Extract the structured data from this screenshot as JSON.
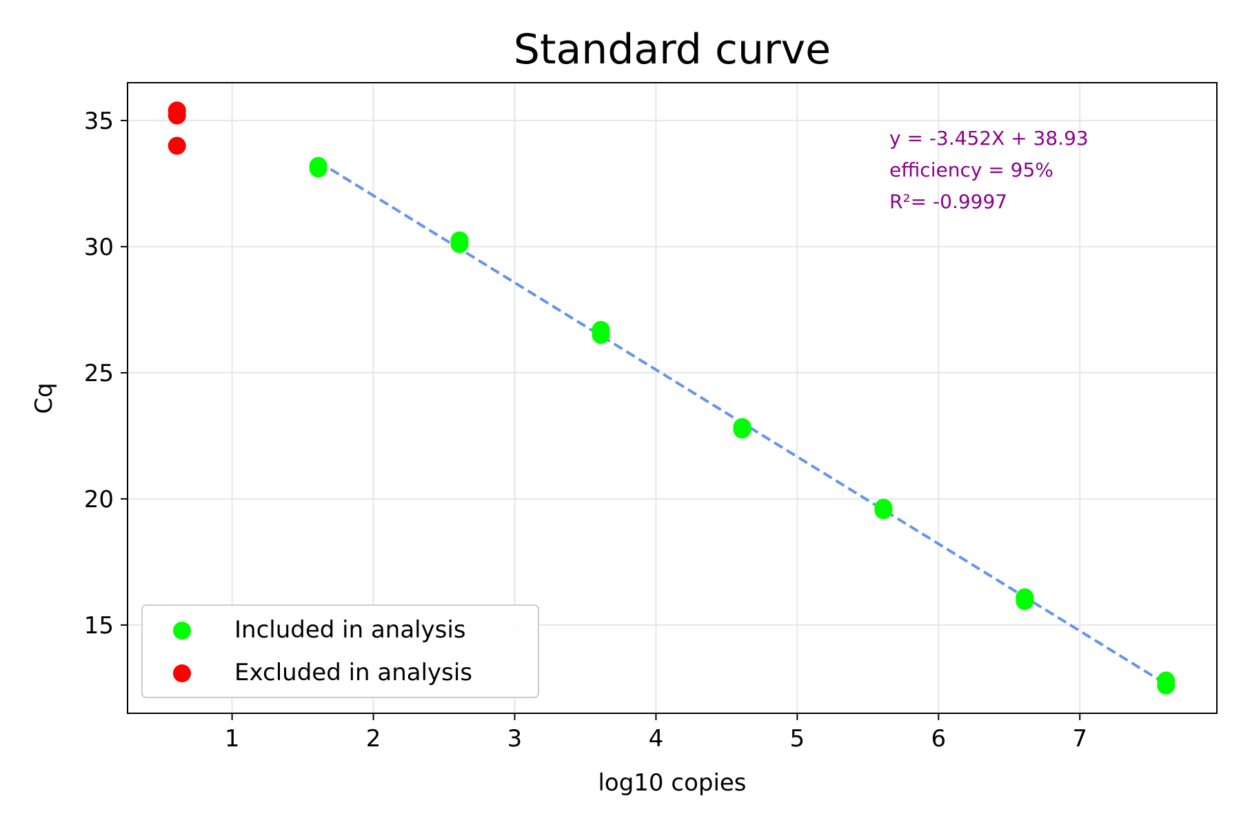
{
  "chart_data": {
    "type": "scatter",
    "title": "Standard curve",
    "xlabel": "log10 copies",
    "ylabel": "Cq",
    "xlim": [
      0.26,
      7.97
    ],
    "ylim": [
      11.5,
      36.5
    ],
    "xticks": [
      1,
      2,
      3,
      4,
      5,
      6,
      7
    ],
    "yticks": [
      15,
      20,
      25,
      30,
      35
    ],
    "grid": true,
    "legend_position": "lower-left",
    "series": [
      {
        "name": "Included in analysis",
        "color": "#00ff00",
        "points": [
          {
            "x": 1.61,
            "y": 33.1
          },
          {
            "x": 1.61,
            "y": 33.2
          },
          {
            "x": 2.61,
            "y": 30.1
          },
          {
            "x": 2.61,
            "y": 30.25
          },
          {
            "x": 3.61,
            "y": 26.5
          },
          {
            "x": 3.61,
            "y": 26.7
          },
          {
            "x": 4.61,
            "y": 22.75
          },
          {
            "x": 4.61,
            "y": 22.85
          },
          {
            "x": 5.61,
            "y": 19.55
          },
          {
            "x": 5.61,
            "y": 19.65
          },
          {
            "x": 6.61,
            "y": 15.95
          },
          {
            "x": 6.61,
            "y": 16.1
          },
          {
            "x": 7.61,
            "y": 12.6
          },
          {
            "x": 7.61,
            "y": 12.8
          }
        ]
      },
      {
        "name": "Excluded in analysis",
        "color": "#ff0000",
        "points": [
          {
            "x": 0.61,
            "y": 35.2
          },
          {
            "x": 0.61,
            "y": 35.4
          },
          {
            "x": 0.61,
            "y": 34.0
          }
        ]
      }
    ],
    "fit_line": {
      "slope": -3.452,
      "intercept": 38.93,
      "x_range": [
        1.61,
        7.61
      ],
      "color": "#6495ed",
      "style": "dashed"
    },
    "annotation": {
      "color": "#8b008b",
      "lines": [
        "y = -3.452X + 38.93",
        "efficiency = 95%",
        "R²= -0.9997"
      ]
    }
  }
}
